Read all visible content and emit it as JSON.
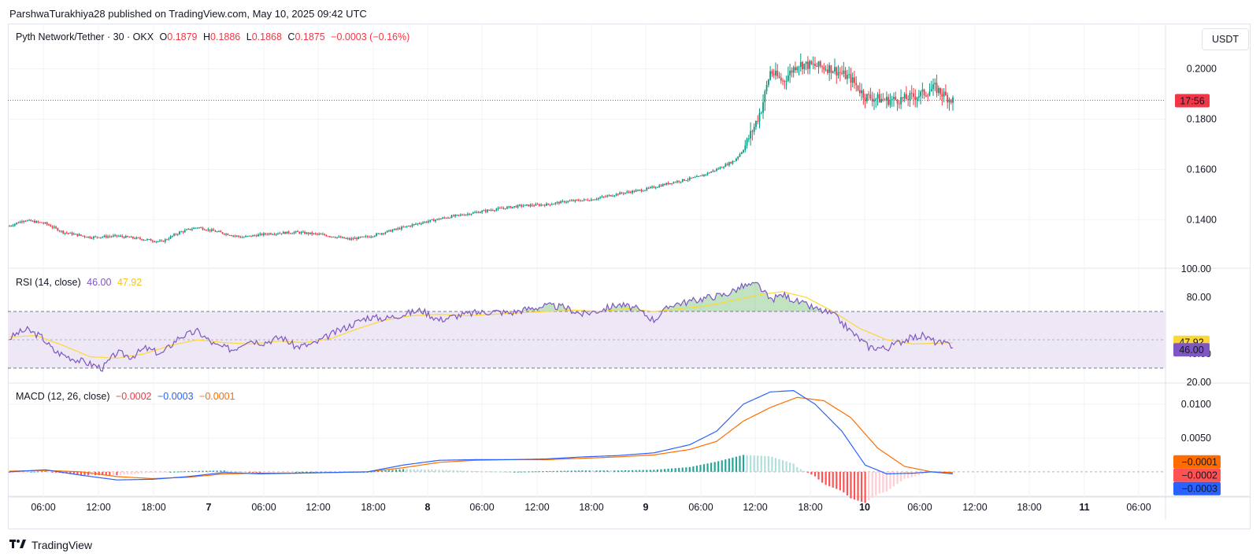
{
  "header": {
    "publisher": "ParshwaTurakhiya28 published on TradingView.com, May 10, 2025 09:42 UTC"
  },
  "price_pane": {
    "symbol": "Pyth Network/Tether · 30 · OKX",
    "o_key": "O",
    "o_val": "0.1879",
    "h_key": "H",
    "h_val": "0.1886",
    "l_key": "L",
    "l_val": "0.1868",
    "c_key": "C",
    "c_val": "0.1875",
    "change": "−0.0003 (−0.16%)",
    "currency_button": "USDT",
    "countdown_label": "17:56"
  },
  "rsi_pane": {
    "title": "RSI (14, close)",
    "rsi_value": "46.00",
    "ma_value": "47.92"
  },
  "macd_pane": {
    "title": "MACD (12, 26, close)",
    "hist_value": "−0.0002",
    "macd_value": "−0.0003",
    "signal_value": "−0.0001"
  },
  "footer": {
    "brand": "TradingView"
  },
  "colors": {
    "up": "#089981",
    "down": "#f23645",
    "rsi_line": "#7e57c2",
    "rsi_ma": "#fdd835",
    "macd_line": "#2962ff",
    "signal_line": "#ff6d00",
    "hist_up_strong": "#26a69a",
    "hist_up_weak": "#b2dfdb",
    "hist_down_strong": "#ff5252",
    "hist_down_weak": "#ffcdd2",
    "rsi_band": "#ede7f6"
  },
  "chart_data": [
    {
      "type": "candlestick",
      "title": "Pyth Network/Tether · 30 · OKX",
      "x_ticks": [
        "06:00",
        "12:00",
        "18:00",
        "7",
        "06:00",
        "12:00",
        "18:00",
        "8",
        "06:00",
        "12:00",
        "18:00",
        "9",
        "06:00",
        "12:00",
        "18:00",
        "10",
        "06:00",
        "12:00",
        "18:00",
        "11",
        "06:00"
      ],
      "y_ticks": [
        "0.2000",
        "0.1800",
        "0.1600",
        "0.1400"
      ],
      "ylim": [
        0.121,
        0.218
      ],
      "last_price": 0.1875,
      "close_keypoints": [
        [
          0,
          0.1375
        ],
        [
          8,
          0.1398
        ],
        [
          20,
          0.1385
        ],
        [
          30,
          0.135
        ],
        [
          45,
          0.133
        ],
        [
          60,
          0.1335
        ],
        [
          75,
          0.1322
        ],
        [
          85,
          0.1312
        ],
        [
          95,
          0.135
        ],
        [
          105,
          0.137
        ],
        [
          120,
          0.1345
        ],
        [
          130,
          0.133
        ],
        [
          145,
          0.1345
        ],
        [
          160,
          0.135
        ],
        [
          175,
          0.134
        ],
        [
          190,
          0.1322
        ],
        [
          200,
          0.1332
        ],
        [
          215,
          0.136
        ],
        [
          230,
          0.1388
        ],
        [
          245,
          0.141
        ],
        [
          260,
          0.1428
        ],
        [
          270,
          0.144
        ],
        [
          285,
          0.1455
        ],
        [
          300,
          0.146
        ],
        [
          310,
          0.1472
        ],
        [
          325,
          0.148
        ],
        [
          340,
          0.1503
        ],
        [
          355,
          0.152
        ],
        [
          370,
          0.1548
        ],
        [
          385,
          0.157
        ],
        [
          395,
          0.16
        ],
        [
          405,
          0.1635
        ],
        [
          410,
          0.168
        ],
        [
          416,
          0.177
        ],
        [
          420,
          0.184
        ],
        [
          425,
          0.199
        ],
        [
          432,
          0.195
        ],
        [
          440,
          0.202
        ],
        [
          452,
          0.201
        ],
        [
          460,
          0.2
        ],
        [
          470,
          0.196
        ],
        [
          478,
          0.189
        ],
        [
          490,
          0.1875
        ],
        [
          500,
          0.188
        ],
        [
          510,
          0.19
        ],
        [
          517,
          0.1925
        ],
        [
          523,
          0.189
        ],
        [
          527,
          0.1875
        ]
      ]
    },
    {
      "type": "line",
      "title": "RSI (14, close)",
      "y_ticks": [
        "100.00",
        "80.00",
        "40.00",
        "20.00"
      ],
      "ylim": [
        20,
        100
      ],
      "bands": [
        30,
        70
      ],
      "midline": 50,
      "series": [
        {
          "name": "RSI",
          "values": [
            [
              0,
              51
            ],
            [
              5,
              55
            ],
            [
              10,
              57
            ],
            [
              18,
              52
            ],
            [
              25,
              42
            ],
            [
              35,
              37
            ],
            [
              45,
              33
            ],
            [
              52,
              30
            ],
            [
              60,
              41
            ],
            [
              68,
              38
            ],
            [
              76,
              44
            ],
            [
              85,
              40
            ],
            [
              95,
              52
            ],
            [
              105,
              56
            ],
            [
              115,
              46
            ],
            [
              125,
              43
            ],
            [
              133,
              50
            ],
            [
              142,
              48
            ],
            [
              152,
              52
            ],
            [
              160,
              45
            ],
            [
              170,
              47
            ],
            [
              180,
              54
            ],
            [
              190,
              60
            ],
            [
              200,
              66
            ],
            [
              210,
              65
            ],
            [
              220,
              68
            ],
            [
              230,
              71
            ],
            [
              240,
              64
            ],
            [
              250,
              67
            ],
            [
              260,
              69
            ],
            [
              270,
              70
            ],
            [
              280,
              69
            ],
            [
              290,
              72
            ],
            [
              300,
              74
            ],
            [
              310,
              73
            ],
            [
              320,
              68
            ],
            [
              330,
              71
            ],
            [
              340,
              75
            ],
            [
              350,
              72
            ],
            [
              360,
              64
            ],
            [
              370,
              75
            ],
            [
              380,
              77
            ],
            [
              390,
              80
            ],
            [
              400,
              82
            ],
            [
              410,
              88
            ],
            [
              418,
              89
            ],
            [
              425,
              78
            ],
            [
              432,
              82
            ],
            [
              440,
              77
            ],
            [
              450,
              72
            ],
            [
              460,
              68
            ],
            [
              470,
              56
            ],
            [
              480,
              45
            ],
            [
              490,
              44
            ],
            [
              500,
              50
            ],
            [
              510,
              53
            ],
            [
              518,
              48
            ],
            [
              527,
              46
            ]
          ]
        },
        {
          "name": "RSI-based MA",
          "values": [
            [
              0,
              52
            ],
            [
              15,
              53
            ],
            [
              30,
              46
            ],
            [
              45,
              38
            ],
            [
              60,
              37
            ],
            [
              75,
              40
            ],
            [
              90,
              46
            ],
            [
              105,
              50
            ],
            [
              120,
              48
            ],
            [
              135,
              47
            ],
            [
              150,
              49
            ],
            [
              165,
              48
            ],
            [
              180,
              51
            ],
            [
              195,
              58
            ],
            [
              210,
              64
            ],
            [
              225,
              67
            ],
            [
              240,
              68
            ],
            [
              255,
              67
            ],
            [
              270,
              68
            ],
            [
              285,
              69
            ],
            [
              300,
              70
            ],
            [
              315,
              71
            ],
            [
              330,
              70
            ],
            [
              345,
              72
            ],
            [
              360,
              70
            ],
            [
              375,
              72
            ],
            [
              390,
              74
            ],
            [
              405,
              78
            ],
            [
              420,
              82
            ],
            [
              432,
              84
            ],
            [
              445,
              80
            ],
            [
              460,
              70
            ],
            [
              475,
              58
            ],
            [
              490,
              50
            ],
            [
              505,
              47
            ],
            [
              527,
              48
            ]
          ]
        }
      ]
    },
    {
      "type": "bar",
      "title": "MACD (12, 26, close)",
      "y_ticks": [
        "0.0100",
        "0.0050"
      ],
      "ylim": [
        -0.0035,
        0.013
      ],
      "series": [
        {
          "name": "MACD",
          "values": [
            [
              0,
              0.0
            ],
            [
              20,
              0.0003
            ],
            [
              40,
              -0.0005
            ],
            [
              60,
              -0.0012
            ],
            [
              80,
              -0.0011
            ],
            [
              100,
              -0.0007
            ],
            [
              120,
              -0.0001
            ],
            [
              140,
              -0.0003
            ],
            [
              160,
              -0.0002
            ],
            [
              180,
              -0.0001
            ],
            [
              200,
              0.0
            ],
            [
              220,
              0.001
            ],
            [
              240,
              0.0017
            ],
            [
              260,
              0.0018
            ],
            [
              280,
              0.0018
            ],
            [
              300,
              0.0019
            ],
            [
              320,
              0.0022
            ],
            [
              340,
              0.0024
            ],
            [
              360,
              0.0028
            ],
            [
              380,
              0.004
            ],
            [
              395,
              0.006
            ],
            [
              410,
              0.01
            ],
            [
              425,
              0.0118
            ],
            [
              438,
              0.012
            ],
            [
              450,
              0.01
            ],
            [
              465,
              0.006
            ],
            [
              478,
              0.001
            ],
            [
              490,
              -0.0003
            ],
            [
              505,
              -0.0002
            ],
            [
              515,
              0.0
            ],
            [
              527,
              -0.0003
            ]
          ]
        },
        {
          "name": "Signal",
          "values": [
            [
              0,
              0.0001
            ],
            [
              20,
              0.0002
            ],
            [
              40,
              0.0
            ],
            [
              60,
              -0.0007
            ],
            [
              80,
              -0.001
            ],
            [
              100,
              -0.0008
            ],
            [
              120,
              -0.0003
            ],
            [
              140,
              -0.0002
            ],
            [
              160,
              -0.0002
            ],
            [
              180,
              -0.0001
            ],
            [
              200,
              0.0
            ],
            [
              220,
              0.0006
            ],
            [
              240,
              0.0014
            ],
            [
              260,
              0.0017
            ],
            [
              280,
              0.0018
            ],
            [
              300,
              0.0018
            ],
            [
              320,
              0.002
            ],
            [
              340,
              0.0022
            ],
            [
              360,
              0.0025
            ],
            [
              380,
              0.0033
            ],
            [
              395,
              0.0045
            ],
            [
              410,
              0.0075
            ],
            [
              425,
              0.0095
            ],
            [
              440,
              0.011
            ],
            [
              455,
              0.0105
            ],
            [
              470,
              0.008
            ],
            [
              485,
              0.0035
            ],
            [
              500,
              0.0008
            ],
            [
              515,
              0.0
            ],
            [
              527,
              -0.0001
            ]
          ]
        }
      ]
    }
  ]
}
